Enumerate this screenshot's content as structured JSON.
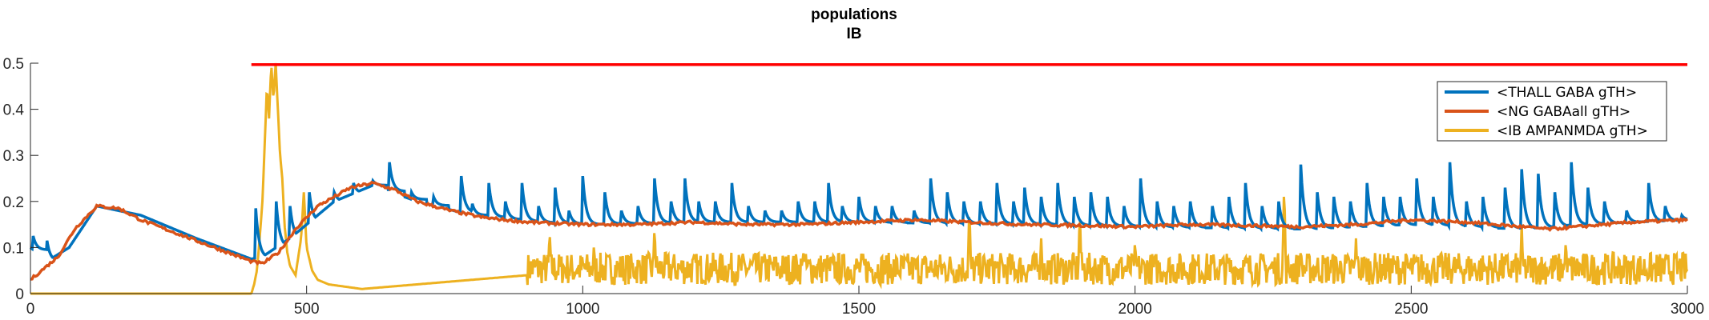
{
  "chart_data": {
    "type": "line",
    "title": "populations",
    "subtitle": "IB",
    "xlabel": "",
    "ylabel": "",
    "xlim": [
      0,
      3000
    ],
    "ylim": [
      0,
      0.5
    ],
    "xticks": [
      0,
      500,
      1000,
      1500,
      2000,
      2500,
      3000
    ],
    "yticks": [
      0,
      0.1,
      0.2,
      0.3,
      0.4,
      0.5
    ],
    "ytick_labels": [
      "0",
      "0.1",
      "0.2",
      "0.3",
      "0.4",
      "0.5"
    ],
    "grid": false,
    "legend_position": "top-right",
    "threshold_line": {
      "y": 0.497,
      "x_start": 400,
      "x_end": 3000,
      "color": "#ff0000"
    },
    "series": [
      {
        "name": "<THALL GABA gTH>",
        "color": "#0072bd",
        "base": [
          [
            0,
            0.1
          ],
          [
            30,
            0.07
          ],
          [
            70,
            0.1
          ],
          [
            120,
            0.19
          ],
          [
            200,
            0.17
          ],
          [
            300,
            0.12
          ],
          [
            400,
            0.075
          ],
          [
            420,
            0.08
          ],
          [
            470,
            0.12
          ],
          [
            550,
            0.2
          ],
          [
            620,
            0.235
          ],
          [
            700,
            0.2
          ],
          [
            800,
            0.17
          ],
          [
            900,
            0.155
          ],
          [
            1000,
            0.15
          ],
          [
            1200,
            0.155
          ],
          [
            1500,
            0.155
          ],
          [
            1800,
            0.15
          ],
          [
            2000,
            0.145
          ],
          [
            2300,
            0.14
          ],
          [
            2500,
            0.15
          ],
          [
            2700,
            0.14
          ],
          [
            2800,
            0.15
          ],
          [
            3000,
            0.16
          ]
        ],
        "spikes": [
          [
            5,
            0.125
          ],
          [
            30,
            0.115
          ],
          [
            408,
            0.185
          ],
          [
            445,
            0.2
          ],
          [
            470,
            0.19
          ],
          [
            505,
            0.22
          ],
          [
            550,
            0.22
          ],
          [
            585,
            0.24
          ],
          [
            620,
            0.245
          ],
          [
            650,
            0.285
          ],
          [
            690,
            0.22
          ],
          [
            730,
            0.21
          ],
          [
            780,
            0.255
          ],
          [
            800,
            0.195
          ],
          [
            830,
            0.24
          ],
          [
            860,
            0.2
          ],
          [
            890,
            0.24
          ],
          [
            920,
            0.19
          ],
          [
            950,
            0.23
          ],
          [
            975,
            0.18
          ],
          [
            1000,
            0.255
          ],
          [
            1040,
            0.22
          ],
          [
            1070,
            0.18
          ],
          [
            1100,
            0.19
          ],
          [
            1130,
            0.25
          ],
          [
            1160,
            0.2
          ],
          [
            1185,
            0.25
          ],
          [
            1210,
            0.2
          ],
          [
            1240,
            0.2
          ],
          [
            1270,
            0.24
          ],
          [
            1300,
            0.19
          ],
          [
            1330,
            0.18
          ],
          [
            1360,
            0.18
          ],
          [
            1390,
            0.2
          ],
          [
            1420,
            0.2
          ],
          [
            1445,
            0.24
          ],
          [
            1470,
            0.19
          ],
          [
            1500,
            0.21
          ],
          [
            1530,
            0.19
          ],
          [
            1560,
            0.19
          ],
          [
            1600,
            0.18
          ],
          [
            1630,
            0.25
          ],
          [
            1660,
            0.22
          ],
          [
            1690,
            0.2
          ],
          [
            1720,
            0.2
          ],
          [
            1750,
            0.24
          ],
          [
            1780,
            0.2
          ],
          [
            1800,
            0.23
          ],
          [
            1830,
            0.21
          ],
          [
            1860,
            0.24
          ],
          [
            1890,
            0.21
          ],
          [
            1920,
            0.22
          ],
          [
            1950,
            0.21
          ],
          [
            1980,
            0.19
          ],
          [
            2010,
            0.25
          ],
          [
            2040,
            0.2
          ],
          [
            2070,
            0.19
          ],
          [
            2100,
            0.2
          ],
          [
            2140,
            0.19
          ],
          [
            2170,
            0.21
          ],
          [
            2200,
            0.24
          ],
          [
            2230,
            0.19
          ],
          [
            2260,
            0.2
          ],
          [
            2300,
            0.28
          ],
          [
            2330,
            0.22
          ],
          [
            2360,
            0.21
          ],
          [
            2390,
            0.2
          ],
          [
            2420,
            0.24
          ],
          [
            2450,
            0.21
          ],
          [
            2480,
            0.21
          ],
          [
            2510,
            0.25
          ],
          [
            2540,
            0.21
          ],
          [
            2570,
            0.285
          ],
          [
            2600,
            0.2
          ],
          [
            2630,
            0.21
          ],
          [
            2670,
            0.23
          ],
          [
            2700,
            0.27
          ],
          [
            2730,
            0.26
          ],
          [
            2760,
            0.22
          ],
          [
            2790,
            0.285
          ],
          [
            2820,
            0.23
          ],
          [
            2850,
            0.2
          ],
          [
            2890,
            0.18
          ],
          [
            2930,
            0.24
          ],
          [
            2960,
            0.19
          ],
          [
            2990,
            0.17
          ]
        ]
      },
      {
        "name": "<NG GABAall gTH>",
        "color": "#d95319",
        "points": [
          [
            0,
            0.03
          ],
          [
            20,
            0.05
          ],
          [
            50,
            0.08
          ],
          [
            80,
            0.14
          ],
          [
            120,
            0.19
          ],
          [
            160,
            0.185
          ],
          [
            200,
            0.16
          ],
          [
            300,
            0.115
          ],
          [
            400,
            0.07
          ],
          [
            420,
            0.065
          ],
          [
            450,
            0.09
          ],
          [
            480,
            0.14
          ],
          [
            520,
            0.19
          ],
          [
            580,
            0.23
          ],
          [
            620,
            0.24
          ],
          [
            660,
            0.225
          ],
          [
            700,
            0.2
          ],
          [
            760,
            0.18
          ],
          [
            820,
            0.165
          ],
          [
            900,
            0.155
          ],
          [
            1000,
            0.15
          ],
          [
            1100,
            0.15
          ],
          [
            1200,
            0.155
          ],
          [
            1300,
            0.15
          ],
          [
            1400,
            0.15
          ],
          [
            1500,
            0.155
          ],
          [
            1600,
            0.16
          ],
          [
            1700,
            0.155
          ],
          [
            1800,
            0.15
          ],
          [
            1900,
            0.148
          ],
          [
            2000,
            0.145
          ],
          [
            2100,
            0.15
          ],
          [
            2200,
            0.148
          ],
          [
            2300,
            0.145
          ],
          [
            2400,
            0.15
          ],
          [
            2500,
            0.16
          ],
          [
            2600,
            0.155
          ],
          [
            2700,
            0.145
          ],
          [
            2750,
            0.14
          ],
          [
            2800,
            0.145
          ],
          [
            2900,
            0.155
          ],
          [
            3000,
            0.16
          ]
        ]
      },
      {
        "name": "<IB AMPANMDA gTH>",
        "color": "#edb120",
        "points": [
          [
            0,
            0
          ],
          [
            390,
            0
          ],
          [
            400,
            0.0
          ],
          [
            405,
            0.02
          ],
          [
            410,
            0.05
          ],
          [
            415,
            0.12
          ],
          [
            420,
            0.2
          ],
          [
            425,
            0.35
          ],
          [
            428,
            0.45
          ],
          [
            432,
            0.38
          ],
          [
            436,
            0.5
          ],
          [
            440,
            0.42
          ],
          [
            444,
            0.5
          ],
          [
            448,
            0.4
          ],
          [
            452,
            0.3
          ],
          [
            456,
            0.25
          ],
          [
            460,
            0.15
          ],
          [
            465,
            0.09
          ],
          [
            470,
            0.06
          ],
          [
            480,
            0.04
          ],
          [
            490,
            0.12
          ],
          [
            495,
            0.22
          ],
          [
            500,
            0.1
          ],
          [
            510,
            0.05
          ],
          [
            520,
            0.03
          ],
          [
            540,
            0.02
          ],
          [
            600,
            0.01
          ],
          [
            700,
            0.02
          ],
          [
            800,
            0.03
          ],
          [
            900,
            0.04
          ],
          [
            3000,
            0.04
          ]
        ],
        "noise_from": 900,
        "noise_amplitude": 0.07,
        "peaks": [
          [
            940,
            0.14
          ],
          [
            1020,
            0.1
          ],
          [
            1130,
            0.15
          ],
          [
            1400,
            0.1
          ],
          [
            1700,
            0.19
          ],
          [
            1830,
            0.12
          ],
          [
            1900,
            0.18
          ],
          [
            2000,
            0.12
          ],
          [
            2270,
            0.24
          ],
          [
            2300,
            0.1
          ],
          [
            2400,
            0.12
          ],
          [
            2700,
            0.15
          ],
          [
            2780,
            0.12
          ]
        ]
      }
    ]
  }
}
